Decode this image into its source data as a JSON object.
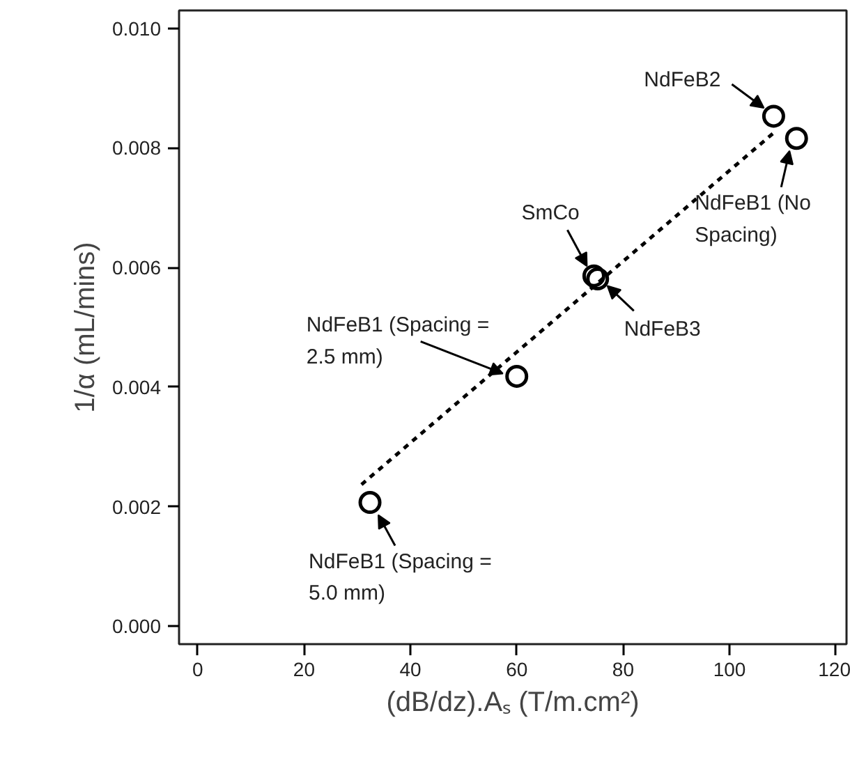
{
  "chart_data": {
    "type": "scatter",
    "xlabel": "(dB/dz).Aₛ (T/m.cm²)",
    "ylabel": "1/α (mL/mins)",
    "xlim": [
      -3.5,
      122
    ],
    "ylim": [
      -0.0003,
      0.0103
    ],
    "xticks": [
      0,
      20,
      40,
      60,
      80,
      100,
      120
    ],
    "yticks": [
      {
        "value": 0,
        "label": "0.000"
      },
      {
        "value": 0.002,
        "label": "0.002"
      },
      {
        "value": 0.004,
        "label": "0.004"
      },
      {
        "value": 0.006,
        "label": "0.006"
      },
      {
        "value": 0.008,
        "label": "0.008"
      },
      {
        "value": 0.01,
        "label": "0.010"
      }
    ],
    "grid": false,
    "marker": "circle",
    "series": [
      {
        "color": "#000000",
        "x": [
          32.4,
          60,
          74.5,
          75.2,
          108.3,
          112.6
        ],
        "values": [
          0.00207,
          0.00418,
          0.00586,
          0.00581,
          0.00853,
          0.00816
        ]
      },
      {
        "type": "line",
        "color": "#000000",
        "line_style": "dashed",
        "marker": "none",
        "x": [
          30.8,
          108.8
        ],
        "values": [
          0.00237,
          0.00829
        ]
      }
    ],
    "annotations": [
      {
        "text": "NdFeB2",
        "x": 108.3,
        "y": 0.00853
      },
      {
        "text": "NdFeB1 (No\nSpacing)",
        "x": 112.6,
        "y": 0.00816
      },
      {
        "text": "SmCo",
        "x": 74.5,
        "y": 0.00586
      },
      {
        "text": "NdFeB3",
        "x": 75.2,
        "y": 0.00581
      },
      {
        "text": "NdFeB1 (Spacing =\n2.5 mm)",
        "x": 60,
        "y": 0.00418
      },
      {
        "text": "NdFeB1 (Spacing =\n5.0 mm)",
        "x": 32.4,
        "y": 0.00207
      }
    ]
  }
}
